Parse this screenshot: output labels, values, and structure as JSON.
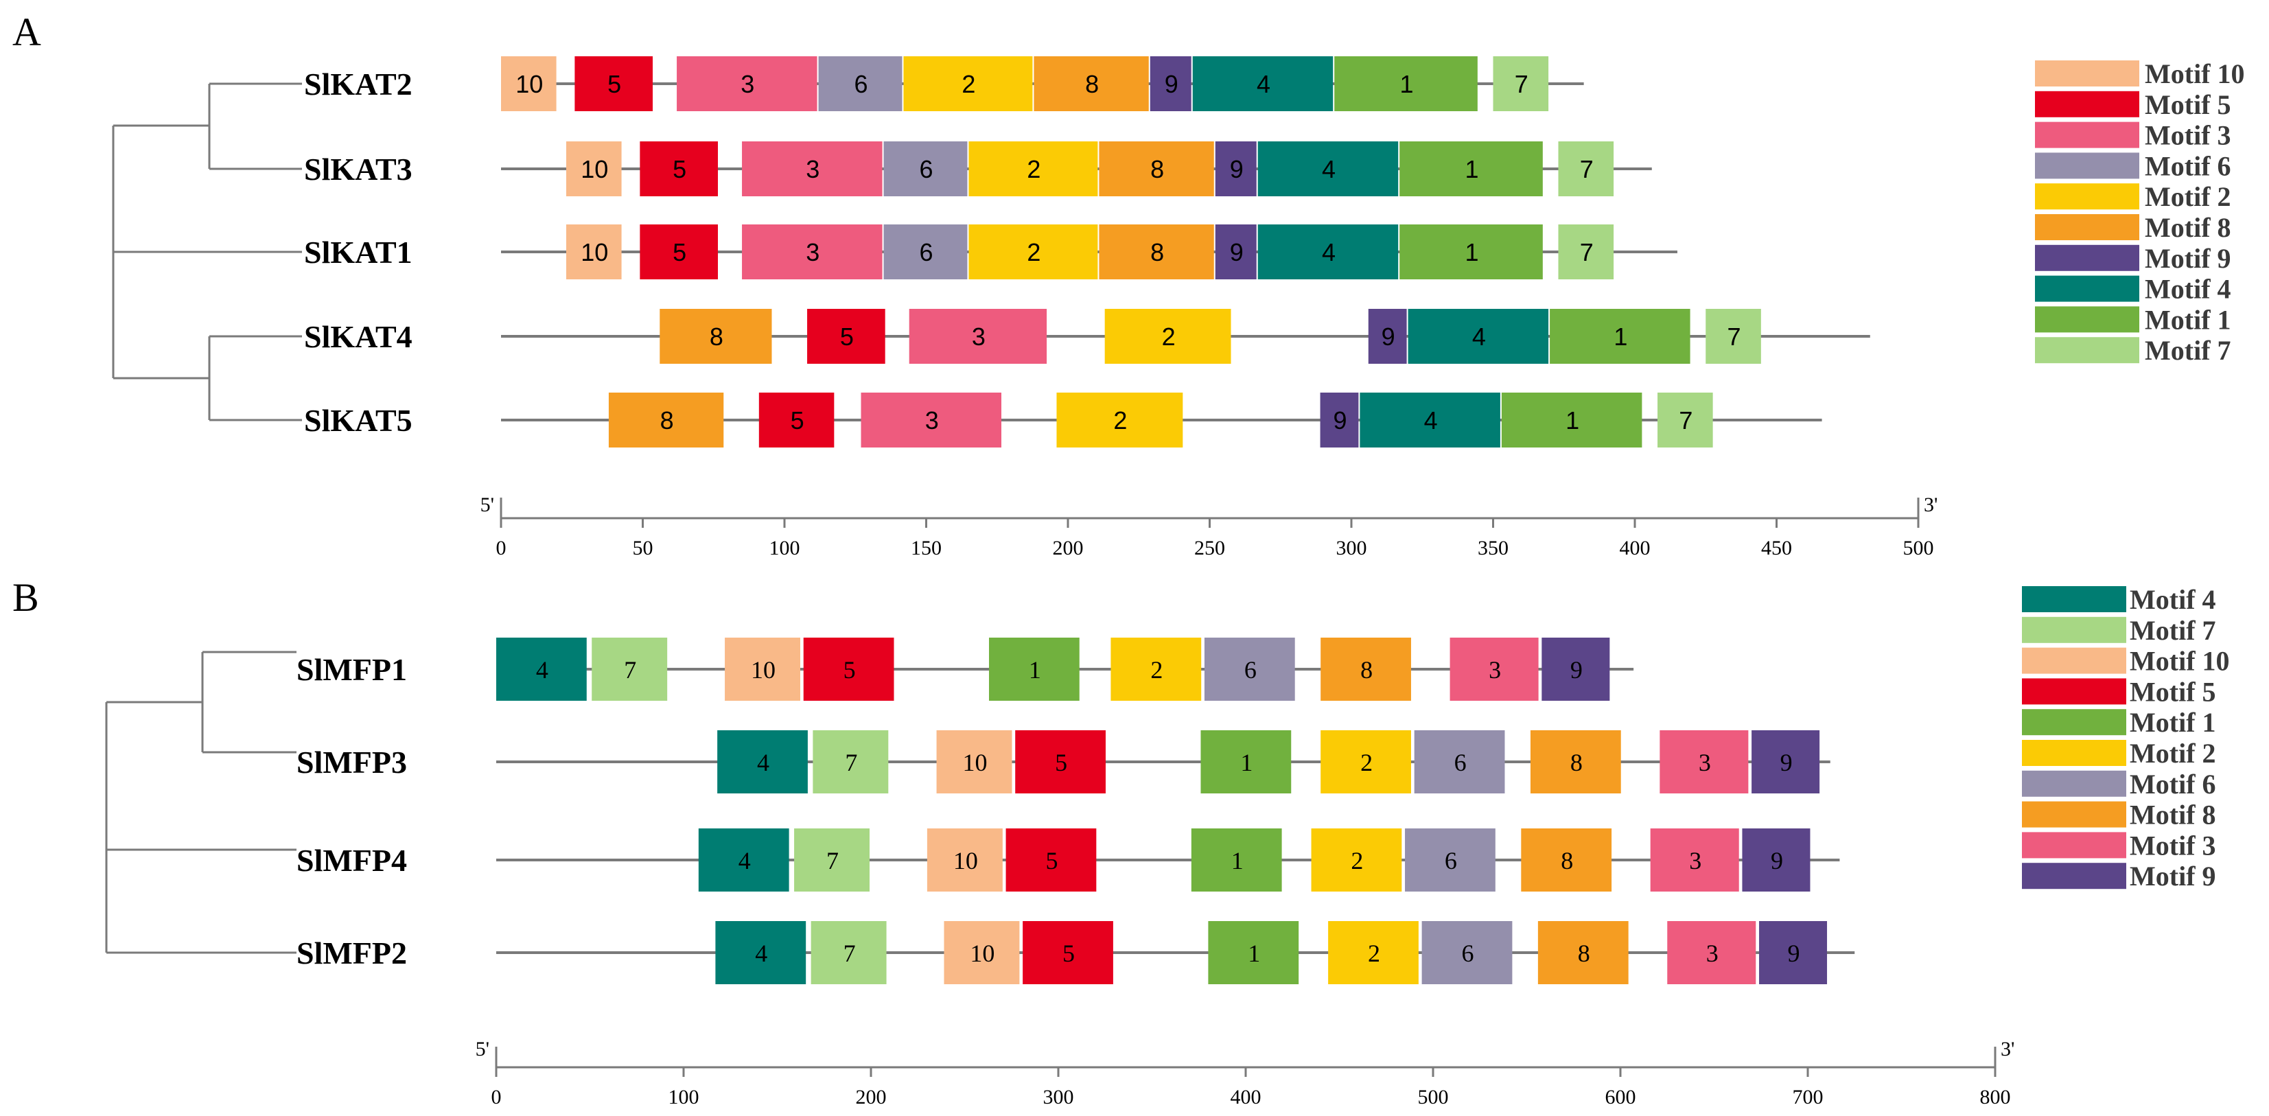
{
  "motif_colors": {
    "1": "#71b13e",
    "2": "#fbcb05",
    "3": "#ee5b7e",
    "4": "#007d72",
    "5": "#e6001e",
    "6": "#948fac",
    "7": "#a7d784",
    "8": "#f59d22",
    "9": "#5b4589",
    "10": "#f9b988"
  },
  "chart_data": [
    {
      "type": "motif-diagram",
      "panel_label": "A",
      "axis": {
        "min": 0,
        "max": 500,
        "ticks": [
          0,
          50,
          100,
          150,
          200,
          250,
          300,
          350,
          400,
          450,
          500
        ],
        "start_label": "5'",
        "end_label": "3'"
      },
      "legend": [
        "Motif 10",
        "Motif 5",
        "Motif 3",
        "Motif 6",
        "Motif 2",
        "Motif 8",
        "Motif 9",
        "Motif 4",
        "Motif 1",
        "Motif 7"
      ],
      "legend_motifs": [
        "10",
        "5",
        "3",
        "6",
        "2",
        "8",
        "9",
        "4",
        "1",
        "7"
      ],
      "genes": [
        {
          "name": "SlKAT2",
          "length": 382,
          "motifs": [
            {
              "motif": "10",
              "start": 0,
              "end": 20
            },
            {
              "motif": "5",
              "start": 26,
              "end": 54
            },
            {
              "motif": "3",
              "start": 62,
              "end": 112
            },
            {
              "motif": "6",
              "start": 112,
              "end": 142
            },
            {
              "motif": "2",
              "start": 142,
              "end": 188
            },
            {
              "motif": "8",
              "start": 188,
              "end": 229
            },
            {
              "motif": "9",
              "start": 229,
              "end": 244
            },
            {
              "motif": "4",
              "start": 244,
              "end": 294
            },
            {
              "motif": "1",
              "start": 294,
              "end": 345
            },
            {
              "motif": "7",
              "start": 350,
              "end": 370
            }
          ]
        },
        {
          "name": "SlKAT3",
          "length": 406,
          "motifs": [
            {
              "motif": "10",
              "start": 23,
              "end": 43
            },
            {
              "motif": "5",
              "start": 49,
              "end": 77
            },
            {
              "motif": "3",
              "start": 85,
              "end": 135
            },
            {
              "motif": "6",
              "start": 135,
              "end": 165
            },
            {
              "motif": "2",
              "start": 165,
              "end": 211
            },
            {
              "motif": "8",
              "start": 211,
              "end": 252
            },
            {
              "motif": "9",
              "start": 252,
              "end": 267
            },
            {
              "motif": "4",
              "start": 267,
              "end": 317
            },
            {
              "motif": "1",
              "start": 317,
              "end": 368
            },
            {
              "motif": "7",
              "start": 373,
              "end": 393
            }
          ]
        },
        {
          "name": "SlKAT1",
          "length": 415,
          "motifs": [
            {
              "motif": "10",
              "start": 23,
              "end": 43
            },
            {
              "motif": "5",
              "start": 49,
              "end": 77
            },
            {
              "motif": "3",
              "start": 85,
              "end": 135
            },
            {
              "motif": "6",
              "start": 135,
              "end": 165
            },
            {
              "motif": "2",
              "start": 165,
              "end": 211
            },
            {
              "motif": "8",
              "start": 211,
              "end": 252
            },
            {
              "motif": "9",
              "start": 252,
              "end": 267
            },
            {
              "motif": "4",
              "start": 267,
              "end": 317
            },
            {
              "motif": "1",
              "start": 317,
              "end": 368
            },
            {
              "motif": "7",
              "start": 373,
              "end": 393
            }
          ]
        },
        {
          "name": "SlKAT4",
          "length": 483,
          "motifs": [
            {
              "motif": "8",
              "start": 56,
              "end": 96
            },
            {
              "motif": "5",
              "start": 108,
              "end": 136
            },
            {
              "motif": "3",
              "start": 144,
              "end": 193
            },
            {
              "motif": "2",
              "start": 213,
              "end": 258
            },
            {
              "motif": "9",
              "start": 306,
              "end": 320
            },
            {
              "motif": "4",
              "start": 320,
              "end": 370
            },
            {
              "motif": "1",
              "start": 370,
              "end": 420
            },
            {
              "motif": "7",
              "start": 425,
              "end": 445
            }
          ]
        },
        {
          "name": "SlKAT5",
          "length": 466,
          "motifs": [
            {
              "motif": "8",
              "start": 38,
              "end": 79
            },
            {
              "motif": "5",
              "start": 91,
              "end": 118
            },
            {
              "motif": "3",
              "start": 127,
              "end": 177
            },
            {
              "motif": "2",
              "start": 196,
              "end": 241
            },
            {
              "motif": "9",
              "start": 289,
              "end": 303
            },
            {
              "motif": "4",
              "start": 303,
              "end": 353
            },
            {
              "motif": "1",
              "start": 353,
              "end": 403
            },
            {
              "motif": "7",
              "start": 408,
              "end": 428
            }
          ]
        }
      ]
    },
    {
      "type": "motif-diagram",
      "panel_label": "B",
      "axis": {
        "min": 0,
        "max": 800,
        "ticks": [
          0,
          100,
          200,
          300,
          400,
          500,
          600,
          700,
          800
        ],
        "start_label": "5'",
        "end_label": "3'"
      },
      "legend": [
        "Motif 4",
        "Motif 7",
        "Motif 10",
        "Motif 5",
        "Motif 1",
        "Motif 2",
        "Motif 6",
        "Motif 8",
        "Motif 3",
        "Motif 9"
      ],
      "legend_motifs": [
        "4",
        "7",
        "10",
        "5",
        "1",
        "2",
        "6",
        "8",
        "3",
        "9"
      ],
      "genes": [
        {
          "name": "SlMFP1",
          "length": 607,
          "motifs": [
            {
              "motif": "4",
              "start": 0,
              "end": 49
            },
            {
              "motif": "7",
              "start": 51,
              "end": 92
            },
            {
              "motif": "10",
              "start": 122,
              "end": 163
            },
            {
              "motif": "5",
              "start": 164,
              "end": 213
            },
            {
              "motif": "1",
              "start": 263,
              "end": 312
            },
            {
              "motif": "2",
              "start": 328,
              "end": 377
            },
            {
              "motif": "6",
              "start": 378,
              "end": 427
            },
            {
              "motif": "8",
              "start": 440,
              "end": 489
            },
            {
              "motif": "3",
              "start": 509,
              "end": 557
            },
            {
              "motif": "9",
              "start": 558,
              "end": 595
            }
          ]
        },
        {
          "name": "SlMFP3",
          "length": 712,
          "motifs": [
            {
              "motif": "4",
              "start": 118,
              "end": 167
            },
            {
              "motif": "7",
              "start": 169,
              "end": 210
            },
            {
              "motif": "10",
              "start": 235,
              "end": 276
            },
            {
              "motif": "5",
              "start": 277,
              "end": 326
            },
            {
              "motif": "1",
              "start": 376,
              "end": 425
            },
            {
              "motif": "2",
              "start": 440,
              "end": 489
            },
            {
              "motif": "6",
              "start": 490,
              "end": 539
            },
            {
              "motif": "8",
              "start": 552,
              "end": 601
            },
            {
              "motif": "3",
              "start": 621,
              "end": 669
            },
            {
              "motif": "9",
              "start": 670,
              "end": 707
            }
          ]
        },
        {
          "name": "SlMFP4",
          "length": 717,
          "motifs": [
            {
              "motif": "4",
              "start": 108,
              "end": 157
            },
            {
              "motif": "7",
              "start": 159,
              "end": 200
            },
            {
              "motif": "10",
              "start": 230,
              "end": 271
            },
            {
              "motif": "5",
              "start": 272,
              "end": 321
            },
            {
              "motif": "1",
              "start": 371,
              "end": 420
            },
            {
              "motif": "2",
              "start": 435,
              "end": 484
            },
            {
              "motif": "6",
              "start": 485,
              "end": 534
            },
            {
              "motif": "8",
              "start": 547,
              "end": 596
            },
            {
              "motif": "3",
              "start": 616,
              "end": 664
            },
            {
              "motif": "9",
              "start": 665,
              "end": 702
            }
          ]
        },
        {
          "name": "SlMFP2",
          "length": 725,
          "motifs": [
            {
              "motif": "4",
              "start": 117,
              "end": 166
            },
            {
              "motif": "7",
              "start": 168,
              "end": 209
            },
            {
              "motif": "10",
              "start": 239,
              "end": 280
            },
            {
              "motif": "5",
              "start": 281,
              "end": 330
            },
            {
              "motif": "1",
              "start": 380,
              "end": 429
            },
            {
              "motif": "2",
              "start": 444,
              "end": 493
            },
            {
              "motif": "6",
              "start": 494,
              "end": 543
            },
            {
              "motif": "8",
              "start": 556,
              "end": 605
            },
            {
              "motif": "3",
              "start": 625,
              "end": 673
            },
            {
              "motif": "9",
              "start": 674,
              "end": 711
            }
          ]
        }
      ]
    }
  ]
}
